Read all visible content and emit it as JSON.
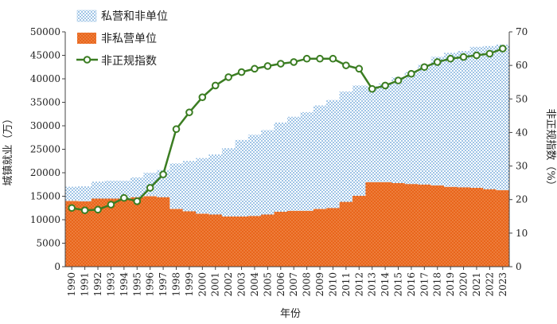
{
  "chart_data": {
    "type": "area",
    "categories": [
      "1990",
      "1991",
      "1992",
      "1993",
      "1994",
      "1995",
      "1996",
      "1997",
      "1998",
      "1999",
      "2000",
      "2001",
      "2002",
      "2003",
      "2004",
      "2005",
      "2006",
      "2007",
      "2008",
      "2009",
      "2010",
      "2011",
      "2012",
      "2013",
      "2014",
      "2015",
      "2016",
      "2017",
      "2018",
      "2019",
      "2020",
      "2021",
      "2022",
      "2023"
    ],
    "series": [
      {
        "name": "私营和非单位",
        "axis": "left",
        "kind": "stacked-area",
        "color": "#9dc3e6",
        "values": [
          3000,
          3200,
          3600,
          3800,
          3800,
          4200,
          5000,
          5800,
          9700,
          10700,
          11800,
          12800,
          14500,
          16300,
          17300,
          18000,
          19000,
          20000,
          21000,
          22000,
          23000,
          23500,
          23500,
          20400,
          21000,
          22500,
          23800,
          25500,
          27400,
          28500,
          29000,
          30000,
          30500,
          31000
        ]
      },
      {
        "name": "非私营单位",
        "axis": "left",
        "kind": "area",
        "color": "#e8651b",
        "values": [
          14000,
          13900,
          14500,
          14500,
          14500,
          14800,
          15000,
          14800,
          12300,
          11800,
          11300,
          11100,
          10700,
          10700,
          10800,
          11100,
          11700,
          11900,
          11900,
          12300,
          12500,
          13800,
          15100,
          18000,
          18000,
          17800,
          17600,
          17500,
          17300,
          17000,
          16900,
          16800,
          16500,
          16300
        ]
      },
      {
        "name": "非正规指数",
        "axis": "right",
        "kind": "line",
        "color": "#3b7d22",
        "values": [
          17.5,
          16.8,
          17.0,
          18.5,
          20.5,
          19.5,
          23.5,
          27.5,
          41,
          46,
          50.5,
          54,
          56.5,
          58,
          59,
          59.8,
          60.5,
          61,
          62,
          62,
          62,
          60,
          59,
          53,
          54,
          55.5,
          57.5,
          59.5,
          61,
          62,
          62.5,
          63,
          63.5,
          65
        ]
      }
    ],
    "legend": [
      "私营和非单位",
      "非私营单位",
      "非正规指数"
    ],
    "legend_position": "top-left",
    "xlabel": "年份",
    "ylabel": "城镇就业（万）",
    "y2label": "非正规指数（%）",
    "ylim": [
      0,
      50000
    ],
    "yticks": [
      0,
      5000,
      10000,
      15000,
      20000,
      25000,
      30000,
      35000,
      40000,
      45000,
      50000
    ],
    "y2lim": [
      0,
      70
    ],
    "y2ticks": [
      0,
      10,
      20,
      30,
      40,
      50,
      60,
      70
    ],
    "grid": false
  }
}
